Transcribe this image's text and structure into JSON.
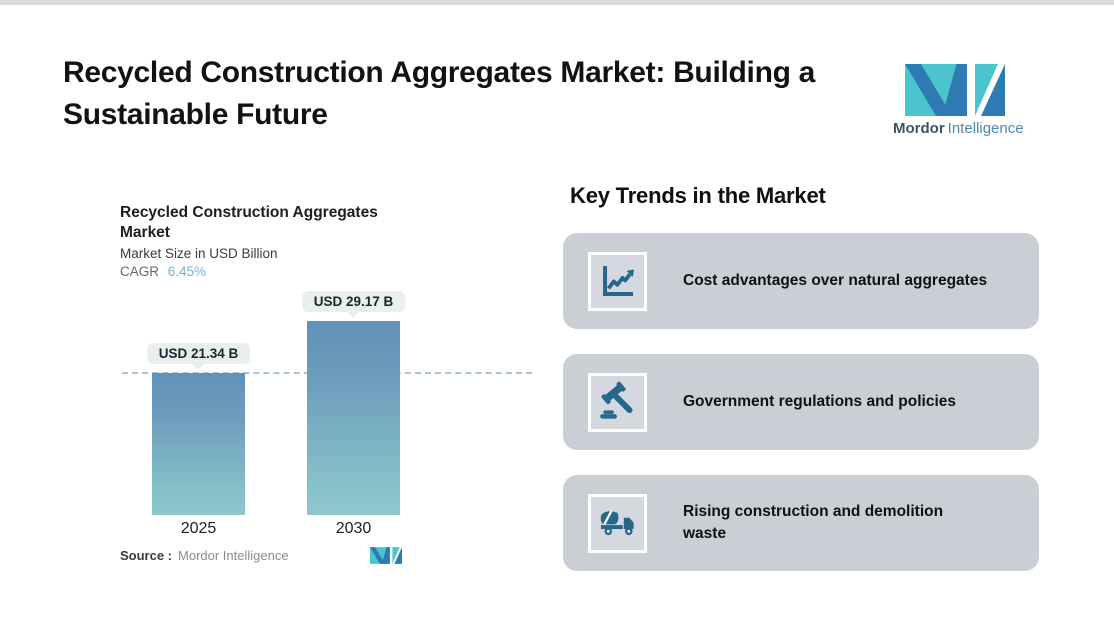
{
  "page": {
    "title": "Recycled Construction Aggregates Market: Building a Sustainable Future"
  },
  "brand": {
    "name_bold": "Mordor",
    "name_light": "Intelligence",
    "colors": {
      "blue": "#2e7bb4",
      "teal": "#4cc4cd"
    }
  },
  "chart": {
    "title": "Recycled Construction Aggregates Market",
    "subtitle": "Market Size in USD Billion",
    "cagr_label": "CAGR",
    "cagr_value": "6.45%",
    "source_label": "Source :",
    "source_value": "Mordor Intelligence"
  },
  "chart_data": {
    "type": "bar",
    "title": "Recycled Construction Aggregates Market",
    "subtitle": "Market Size in USD Billion",
    "unit": "USD Billion",
    "cagr": "6.45%",
    "categories": [
      "2025",
      "2030"
    ],
    "values": [
      21.34,
      29.17
    ],
    "bar_labels": [
      "USD 21.34 B",
      "USD 29.17 B"
    ],
    "reference_line_value": 21.34,
    "ylim": [
      0,
      32
    ],
    "grid": false,
    "legend": false,
    "bar_gradient_top": "#6191b7",
    "bar_gradient_bottom": "#8fc7cb",
    "reference_line_color": "#a6c4d9"
  },
  "trends": {
    "heading": "Key Trends in the Market",
    "items": [
      {
        "icon": "line-chart-icon",
        "text": "Cost advantages over natural aggregates"
      },
      {
        "icon": "gavel-icon",
        "text": "Government regulations and policies"
      },
      {
        "icon": "mixer-truck-icon",
        "text": "Rising construction and demolition waste"
      }
    ]
  }
}
